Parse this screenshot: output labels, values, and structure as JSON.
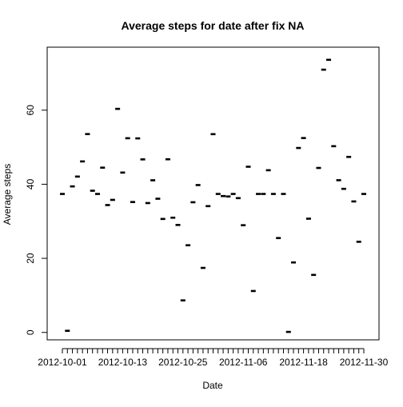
{
  "chart_data": {
    "type": "scatter",
    "title": "Average steps for date after fix NA",
    "xlabel": "Date",
    "ylabel": "Average steps",
    "ylim": [
      -2,
      77
    ],
    "yticks": [
      0,
      20,
      40,
      60
    ],
    "x_tick_labels": [
      "2012-10-01",
      "2012-10-13",
      "2012-10-25",
      "2012-11-06",
      "2012-11-18",
      "2012-11-30"
    ],
    "x_tick_label_dates": [
      "2012-10-01",
      "2012-10-13",
      "2012-10-25",
      "2012-11-06",
      "2012-11-18",
      "2012-11-30"
    ],
    "x": [
      "2012-10-01",
      "2012-10-02",
      "2012-10-03",
      "2012-10-04",
      "2012-10-05",
      "2012-10-06",
      "2012-10-07",
      "2012-10-08",
      "2012-10-09",
      "2012-10-10",
      "2012-10-11",
      "2012-10-12",
      "2012-10-13",
      "2012-10-14",
      "2012-10-15",
      "2012-10-16",
      "2012-10-17",
      "2012-10-18",
      "2012-10-19",
      "2012-10-20",
      "2012-10-21",
      "2012-10-22",
      "2012-10-23",
      "2012-10-24",
      "2012-10-25",
      "2012-10-26",
      "2012-10-27",
      "2012-10-28",
      "2012-10-29",
      "2012-10-30",
      "2012-10-31",
      "2012-11-01",
      "2012-11-02",
      "2012-11-03",
      "2012-11-04",
      "2012-11-05",
      "2012-11-06",
      "2012-11-07",
      "2012-11-08",
      "2012-11-09",
      "2012-11-10",
      "2012-11-11",
      "2012-11-12",
      "2012-11-13",
      "2012-11-14",
      "2012-11-15",
      "2012-11-16",
      "2012-11-17",
      "2012-11-18",
      "2012-11-19",
      "2012-11-20",
      "2012-11-21",
      "2012-11-22",
      "2012-11-23",
      "2012-11-24",
      "2012-11-25",
      "2012-11-26",
      "2012-11-27",
      "2012-11-28",
      "2012-11-29",
      "2012-11-30"
    ],
    "values": [
      37.38,
      0.44,
      39.42,
      42.07,
      46.16,
      53.54,
      38.25,
      37.38,
      44.48,
      34.38,
      35.78,
      60.35,
      43.15,
      52.42,
      35.2,
      52.38,
      46.71,
      34.92,
      41.07,
      36.09,
      30.63,
      46.74,
      30.97,
      29.01,
      8.65,
      23.53,
      35.14,
      39.78,
      17.42,
      34.09,
      53.52,
      37.38,
      36.81,
      36.7,
      37.38,
      36.25,
      28.94,
      44.73,
      11.18,
      37.38,
      37.38,
      43.78,
      37.38,
      25.47,
      37.38,
      0.14,
      18.89,
      49.79,
      52.47,
      30.7,
      15.53,
      44.4,
      70.93,
      73.59,
      50.27,
      41.09,
      38.76,
      47.38,
      35.36,
      24.47,
      37.38
    ],
    "grid": false,
    "marker": "short horizontal dash",
    "marker_color": "#000000"
  }
}
